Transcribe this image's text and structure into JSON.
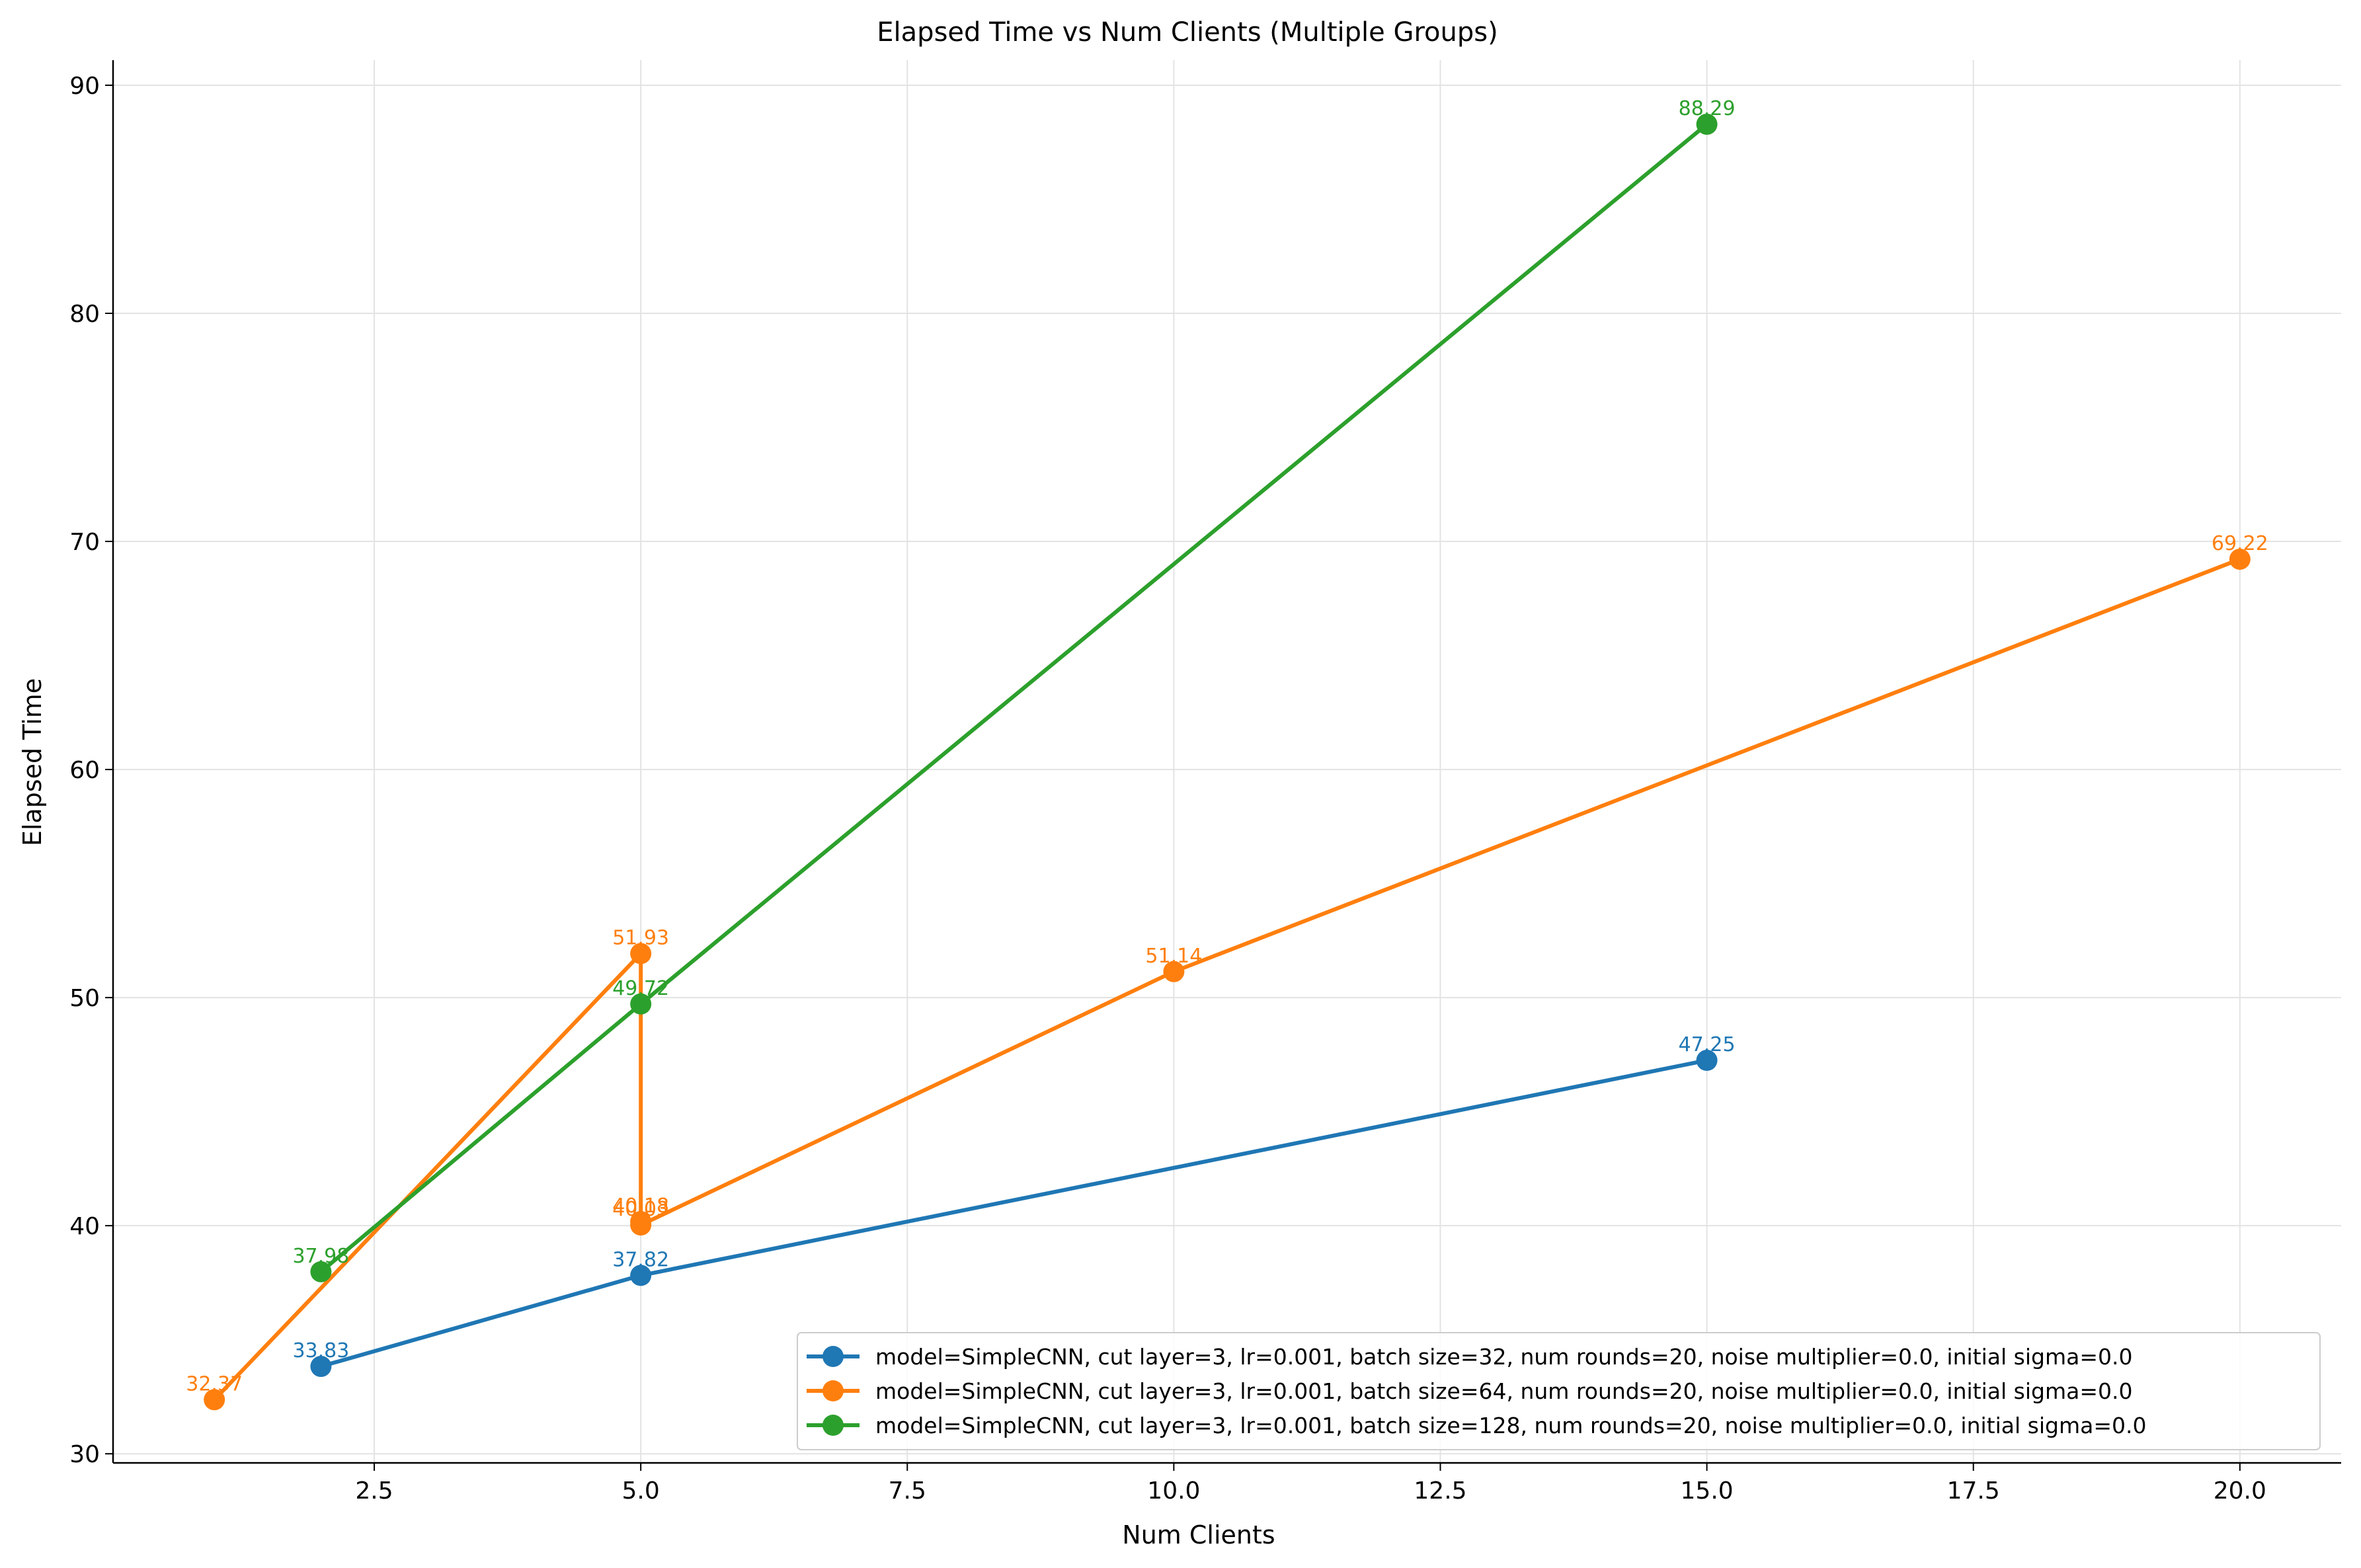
{
  "chart_data": {
    "type": "line",
    "title": "Elapsed Time vs Num Clients (Multiple Groups)",
    "xlabel": "Num Clients",
    "ylabel": "Elapsed Time",
    "xlim": [
      0.05,
      20.95
    ],
    "ylim": [
      29.6,
      91.1
    ],
    "xticks": [
      2.5,
      5.0,
      7.5,
      10.0,
      12.5,
      15.0,
      17.5,
      20.0
    ],
    "xtick_labels": [
      "2.5",
      "5.0",
      "7.5",
      "10.0",
      "12.5",
      "15.0",
      "17.5",
      "20.0"
    ],
    "yticks": [
      30,
      40,
      50,
      60,
      70,
      80,
      90
    ],
    "ytick_labels": [
      "30",
      "40",
      "50",
      "60",
      "70",
      "80",
      "90"
    ],
    "grid": true,
    "legend_position": "lower-right",
    "series": [
      {
        "name": "model=SimpleCNN, cut layer=3, lr=0.001, batch size=32, num rounds=20, noise multiplier=0.0, initial sigma=0.0",
        "color": "#1f77b4",
        "x": [
          2,
          5,
          15
        ],
        "y": [
          33.83,
          37.82,
          47.25
        ],
        "labels": [
          "33.83",
          "37.82",
          "47.25"
        ]
      },
      {
        "name": "model=SimpleCNN, cut layer=3, lr=0.001, batch size=64, num rounds=20, noise multiplier=0.0, initial sigma=0.0",
        "color": "#ff7f0e",
        "x": [
          1,
          5,
          5,
          5,
          10,
          20
        ],
        "y": [
          32.37,
          51.93,
          40.18,
          40.03,
          51.14,
          69.22
        ],
        "labels": [
          "32.37",
          "51.93",
          "40.18",
          "40.03",
          "51.14",
          "69.22"
        ]
      },
      {
        "name": "model=SimpleCNN, cut layer=3, lr=0.001, batch size=128, num rounds=20, noise multiplier=0.0, initial sigma=0.0",
        "color": "#2ca02c",
        "x": [
          2,
          5,
          15
        ],
        "y": [
          37.98,
          49.72,
          88.29
        ],
        "labels": [
          "37.98",
          "49.72",
          "88.29"
        ]
      }
    ]
  }
}
